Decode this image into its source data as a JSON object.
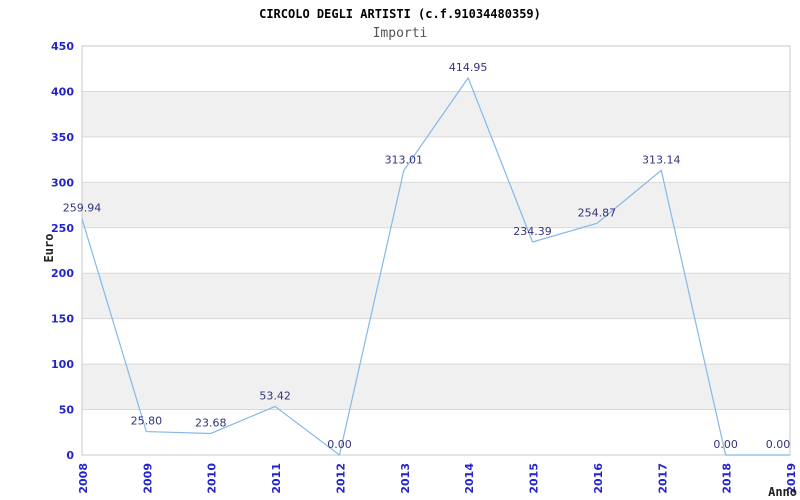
{
  "header": {
    "title": "CIRCOLO DEGLI ARTISTI (c.f.91034480359)",
    "subtitle": "Importi"
  },
  "chart_data": {
    "type": "line",
    "title": "CIRCOLO DEGLI ARTISTI (c.f.91034480359)",
    "subtitle": "Importi",
    "xlabel": "Anno",
    "ylabel": "Euro",
    "categories": [
      "2008",
      "2009",
      "2010",
      "2011",
      "2012",
      "2013",
      "2014",
      "2015",
      "2016",
      "2017",
      "2018",
      "2019"
    ],
    "series": [
      {
        "name": "Importi",
        "values": [
          259.94,
          25.8,
          23.68,
          53.42,
          0.0,
          313.01,
          414.95,
          234.39,
          254.87,
          313.14,
          0.0,
          0.0
        ],
        "value_labels": [
          "259.94",
          "25.80",
          "23.68",
          "53.42",
          "0.00",
          "313.01",
          "414.95",
          "234.39",
          "254.87",
          "313.14",
          "0.00",
          "0.00"
        ]
      }
    ],
    "ylim": [
      0,
      450
    ],
    "ytick_step": 50,
    "ytick_labels": [
      "0",
      "50",
      "100",
      "150",
      "200",
      "250",
      "300",
      "350",
      "400",
      "450"
    ],
    "grid": "alternating horizontal bands every 50 units",
    "legend": "none",
    "colors": {
      "line": "#85b8e8",
      "tick_label": "#2424cc",
      "value_label": "#333380",
      "band": "#f0f0f0",
      "gridline": "#d9d9d9",
      "border": "#c9c9c9",
      "axis_title": "#222222",
      "title": "#000000",
      "subtitle": "#555555"
    }
  }
}
